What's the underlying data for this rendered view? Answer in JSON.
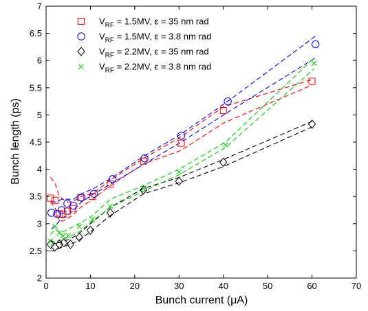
{
  "chart_data": {
    "type": "scatter",
    "title": "",
    "xlabel": "Bunch current (μA)",
    "ylabel": "Bunch length (ps)",
    "xlim": [
      0,
      70
    ],
    "ylim": [
      2,
      7
    ],
    "xticks": [
      0,
      10,
      20,
      30,
      40,
      50,
      60,
      70
    ],
    "yticks": [
      2,
      2.5,
      3,
      3.5,
      4,
      4.5,
      5,
      5.5,
      6,
      6.5,
      7
    ],
    "grid": false,
    "legend_position": "top-left",
    "series": [
      {
        "legend": {
          "pre": "V",
          "sub": "RF",
          "post": " = 1.5MV, ε = 35 nm rad"
        },
        "color": "#ff0000",
        "marker": "square",
        "x": [
          1.0,
          2.0,
          3.0,
          3.8,
          4.8,
          6.0,
          7.8,
          10.5,
          14.5,
          22.0,
          30.5,
          40.0,
          60.0
        ],
        "y": [
          3.47,
          3.43,
          3.18,
          3.17,
          3.23,
          3.28,
          3.48,
          3.5,
          3.73,
          4.15,
          4.48,
          5.08,
          5.62
        ],
        "fit_low": [
          3.4,
          3.3,
          3.05,
          3.05,
          3.1,
          3.15,
          3.3,
          3.45,
          3.7,
          4.1,
          4.35,
          4.85,
          5.55
        ],
        "fit_high": [
          3.85,
          3.75,
          3.5,
          3.45,
          3.4,
          3.4,
          3.5,
          3.55,
          3.8,
          4.2,
          4.6,
          5.15,
          5.65
        ]
      },
      {
        "legend": {
          "pre": "V",
          "sub": "RF",
          "post": " = 1.5MV, ε = 3.8 nm rad"
        },
        "color": "#0000ff",
        "marker": "circle",
        "x": [
          1.2,
          2.5,
          3.5,
          4.8,
          6.2,
          8.0,
          10.8,
          15.0,
          22.2,
          30.5,
          41.0,
          60.8
        ],
        "y": [
          3.2,
          3.18,
          3.25,
          3.37,
          3.33,
          3.48,
          3.55,
          3.82,
          4.2,
          4.62,
          5.25,
          6.3
        ],
        "fit_low": [
          2.9,
          3.0,
          3.1,
          3.15,
          3.25,
          3.4,
          3.55,
          3.75,
          4.1,
          4.5,
          5.05,
          6.05
        ],
        "fit_high": [
          3.4,
          3.4,
          3.45,
          3.45,
          3.45,
          3.55,
          3.65,
          3.85,
          4.25,
          4.65,
          5.25,
          6.45
        ]
      },
      {
        "legend": {
          "pre": "V",
          "sub": "RF",
          "post": " = 2.2MV, ε = 35 nm rad"
        },
        "color": "#000000",
        "marker": "diamond",
        "x": [
          1.0,
          2.0,
          3.0,
          4.0,
          5.5,
          7.5,
          10.0,
          14.5,
          22.0,
          30.0,
          40.0,
          60.0
        ],
        "y": [
          2.62,
          2.57,
          2.62,
          2.65,
          2.62,
          2.75,
          2.88,
          3.2,
          3.62,
          3.78,
          4.13,
          4.83
        ],
        "fit_low": [
          2.5,
          2.5,
          2.55,
          2.58,
          2.62,
          2.7,
          2.85,
          3.15,
          3.55,
          3.75,
          4.05,
          4.78
        ],
        "fit_high": [
          2.7,
          2.65,
          2.65,
          2.68,
          2.72,
          2.82,
          3.0,
          3.3,
          3.65,
          3.85,
          4.18,
          4.88
        ]
      },
      {
        "legend": {
          "pre": "V",
          "sub": "RF",
          "post": " = 2.2MV, ε = 3.8 nm rad"
        },
        "color": "#00cc00",
        "marker": "x",
        "x": [
          1.0,
          2.0,
          3.0,
          3.8,
          5.0,
          7.5,
          10.5,
          14.5,
          22.0,
          30.0,
          40.5,
          60.5
        ],
        "y": [
          2.68,
          2.95,
          2.83,
          2.78,
          2.78,
          2.95,
          3.08,
          3.32,
          3.65,
          3.95,
          4.45,
          5.95
        ],
        "fit_low": [
          2.6,
          2.65,
          2.7,
          2.7,
          2.75,
          2.85,
          3.05,
          3.3,
          3.6,
          3.9,
          4.4,
          5.85
        ],
        "fit_high": [
          2.8,
          2.9,
          2.85,
          2.85,
          2.9,
          3.0,
          3.15,
          3.45,
          3.7,
          4.0,
          4.5,
          6.05
        ]
      }
    ]
  }
}
